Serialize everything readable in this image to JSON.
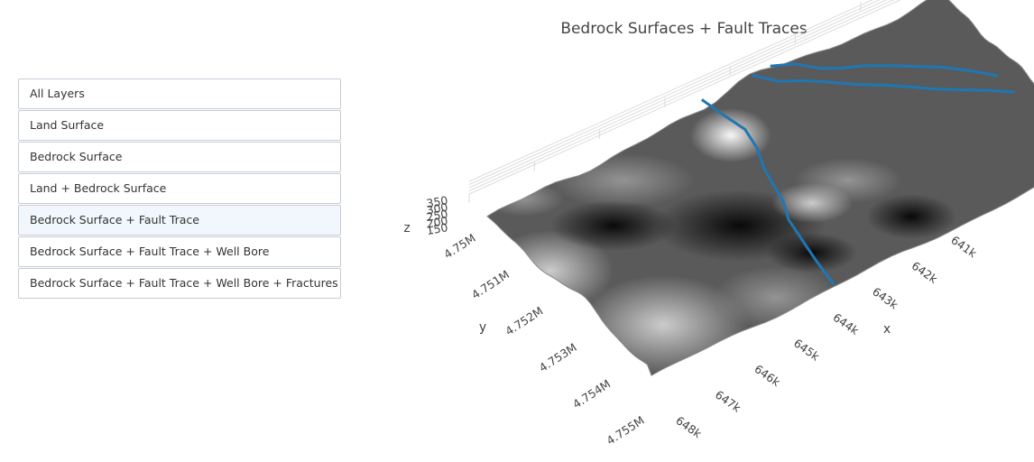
{
  "menu": {
    "buttons": [
      {
        "label": "All Layers",
        "active": false
      },
      {
        "label": "Land Surface",
        "active": false
      },
      {
        "label": "Bedrock Surface",
        "active": false
      },
      {
        "label": "Land + Bedrock Surface",
        "active": false
      },
      {
        "label": "Bedrock Surface + Fault Trace",
        "active": true
      },
      {
        "label": "Bedrock Surface + Fault Trace + Well Bore",
        "active": false
      },
      {
        "label": "Bedrock Surface + Fault Trace + Well Bore + Fractures",
        "active": false
      }
    ]
  },
  "chart_data": {
    "type": "surface3d",
    "title": "Bedrock Surfaces + Fault Traces",
    "colorscale": "greys",
    "fault_color": "#1f77b4",
    "axes": {
      "x": {
        "label": "x",
        "ticks": [
          "641k",
          "642k",
          "643k",
          "644k",
          "645k",
          "646k",
          "647k",
          "648k"
        ],
        "range": [
          641000,
          648000
        ]
      },
      "y": {
        "label": "y",
        "ticks": [
          "4.75M",
          "4.751M",
          "4.752M",
          "4.753M",
          "4.754M",
          "4.755M"
        ],
        "range": [
          4750000,
          4755000
        ]
      },
      "z": {
        "label": "z",
        "ticks": [
          "150",
          "200",
          "250",
          "300",
          "350"
        ],
        "range": [
          150,
          350
        ]
      }
    },
    "series": [
      {
        "type": "surface",
        "description_only": false
      },
      {
        "type": "fault-trace"
      },
      {
        "type": "fault-trace"
      },
      {
        "type": "fault-trace"
      }
    ]
  }
}
